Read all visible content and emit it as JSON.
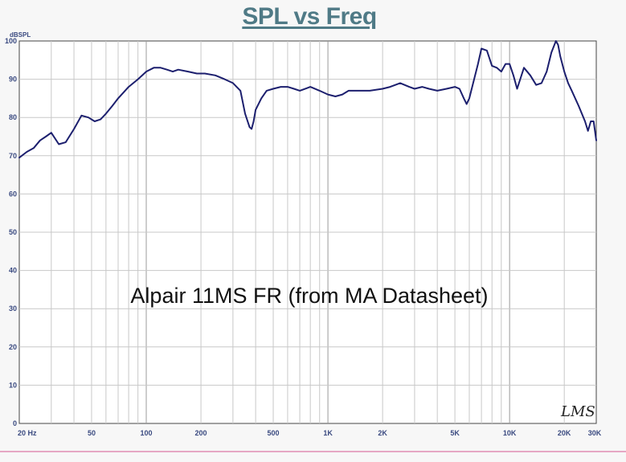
{
  "chart_data": {
    "type": "line",
    "title": "SPL vs Freq",
    "ylabel": "dBSPL",
    "xlabel": "",
    "x_scale": "log",
    "xlim": [
      20,
      30000
    ],
    "ylim": [
      0,
      100
    ],
    "grid": true,
    "y_ticks": [
      "0",
      "10",
      "20",
      "30",
      "40",
      "50",
      "60",
      "70",
      "80",
      "90",
      "100"
    ],
    "x_ticks": [
      {
        "value": 20,
        "label": "20 Hz"
      },
      {
        "value": 50,
        "label": "50"
      },
      {
        "value": 100,
        "label": "100"
      },
      {
        "value": 200,
        "label": "200"
      },
      {
        "value": 500,
        "label": "500"
      },
      {
        "value": 1000,
        "label": "1K"
      },
      {
        "value": 2000,
        "label": "2K"
      },
      {
        "value": 5000,
        "label": "5K"
      },
      {
        "value": 10000,
        "label": "10K"
      },
      {
        "value": 20000,
        "label": "20K"
      },
      {
        "value": 30000,
        "label": "30K"
      }
    ],
    "annotation": "Alpair 11MS FR (from MA Datasheet)",
    "signature": "LMS",
    "series": [
      {
        "color": "#1c1f6e",
        "x": [
          20,
          22,
          24,
          26,
          28,
          30,
          33,
          36,
          40,
          44,
          48,
          52,
          56,
          60,
          65,
          70,
          80,
          90,
          100,
          110,
          120,
          130,
          140,
          150,
          170,
          190,
          210,
          240,
          270,
          300,
          330,
          350,
          370,
          380,
          390,
          400,
          430,
          460,
          500,
          550,
          600,
          650,
          700,
          800,
          900,
          1000,
          1100,
          1200,
          1300,
          1500,
          1700,
          2000,
          2200,
          2500,
          2800,
          3000,
          3300,
          3600,
          4000,
          4500,
          5000,
          5300,
          5600,
          5800,
          6000,
          6300,
          6700,
          7000,
          7500,
          8000,
          8500,
          9000,
          9500,
          10000,
          10500,
          11000,
          12000,
          13000,
          14000,
          15000,
          16000,
          17000,
          18000,
          18500,
          19000,
          20000,
          21000,
          22000,
          24000,
          26000,
          27000,
          28000,
          29000,
          30000
        ],
        "y": [
          69.5,
          71,
          72,
          74,
          75,
          76,
          73,
          73.5,
          77,
          80.5,
          80,
          79,
          79.5,
          81,
          83,
          85,
          88,
          90,
          92,
          93,
          93,
          92.5,
          92,
          92.5,
          92,
          91.5,
          91.5,
          91,
          90,
          89,
          87,
          81,
          77.5,
          77,
          79,
          82,
          85,
          87,
          87.5,
          88,
          88,
          87.5,
          87,
          88,
          87,
          86,
          85.5,
          86,
          87,
          87,
          87,
          87.5,
          88,
          89,
          88,
          87.5,
          88,
          87.5,
          87,
          87.5,
          88,
          87.5,
          85,
          83.5,
          85,
          89,
          94,
          98,
          97.5,
          93.5,
          93,
          92,
          94,
          94,
          91,
          87.5,
          93,
          91,
          88.5,
          89,
          92,
          97,
          100,
          99,
          96,
          92,
          89,
          87,
          83,
          79,
          76.5,
          79,
          79,
          74
        ]
      }
    ]
  }
}
